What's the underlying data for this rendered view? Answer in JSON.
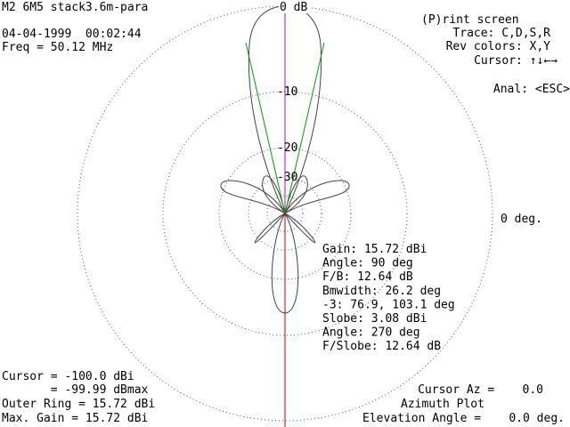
{
  "header": {
    "title": "M2 6M5 stack3.6m-para",
    "datetime": "04-04-1999  00:02:44",
    "freq": "Freq = 50.12 MHz"
  },
  "menu": {
    "print": "(P)rint screen",
    "trace": "Trace: C,D,S,R",
    "rev": "Rev colors: X,Y",
    "cursor": "Cursor: ↑↓←→",
    "anal": "Anal: <ESC>"
  },
  "rings": [
    "0 dB",
    "-10",
    "-20",
    "-30"
  ],
  "angle_label": "0 deg.",
  "stats": [
    "Gain: 15.72 dBi",
    "Angle: 90 deg",
    "F/B: 12.64 dB",
    "Bmwidth: 26.2 deg",
    "-3: 76.9, 103.1 deg",
    "Slobe: 3.08 dBi",
    "Angle: 270 deg",
    "F/Slobe: 12.64 dB"
  ],
  "footer_left": [
    "Cursor = -100.0 dBi",
    "       = -99.99 dBmax",
    "Outer Ring = 15.72 dBi",
    "Max. Gain = 15.72 dBi"
  ],
  "footer_right": {
    "cursor_az": "Cursor Az =    0.0",
    "plot": "Azimuth Plot",
    "elevation": "Elevation Angle =    0.0 deg."
  }
}
